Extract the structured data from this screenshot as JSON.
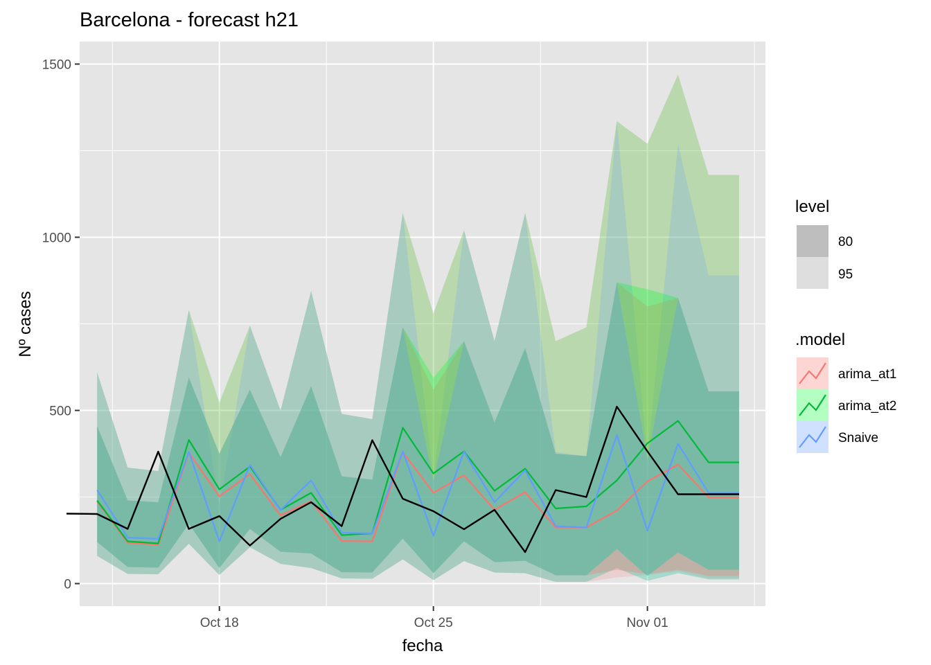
{
  "chart_data": {
    "type": "line",
    "title": "Barcelona - forecast h21",
    "xlabel": "fecha",
    "ylabel": "Nº cases",
    "x_start": "2021-10-14",
    "x": [
      "2021-10-14",
      "2021-10-15",
      "2021-10-16",
      "2021-10-17",
      "2021-10-18",
      "2021-10-19",
      "2021-10-20",
      "2021-10-21",
      "2021-10-22",
      "2021-10-23",
      "2021-10-24",
      "2021-10-25",
      "2021-10-26",
      "2021-10-27",
      "2021-10-28",
      "2021-10-29",
      "2021-10-30",
      "2021-10-31",
      "2021-11-01",
      "2021-11-02",
      "2021-11-03",
      "2021-11-04"
    ],
    "xlim": [
      "2021-10-13.43",
      "2021-11-04.86"
    ],
    "ylim": [
      -65,
      1565
    ],
    "y_ticks": [
      0,
      500,
      1000,
      1500
    ],
    "x_ticks": [
      {
        "label": "Oct 18",
        "date": "2021-10-18"
      },
      {
        "label": "Oct 25",
        "date": "2021-10-25"
      },
      {
        "label": "Nov 01",
        "date": "2021-11-01"
      }
    ],
    "grid": true,
    "legend_position": "right",
    "actual": {
      "name": "",
      "color": "#000000",
      "x": [
        "2021-10-13",
        "2021-10-14",
        "2021-10-15",
        "2021-10-16",
        "2021-10-17",
        "2021-10-18",
        "2021-10-19",
        "2021-10-20",
        "2021-10-21",
        "2021-10-22",
        "2021-10-23",
        "2021-10-24",
        "2021-10-25",
        "2021-10-26",
        "2021-10-27",
        "2021-10-28",
        "2021-10-29",
        "2021-10-30",
        "2021-10-31",
        "2021-11-01",
        "2021-11-02",
        "2021-11-03",
        "2021-11-04"
      ],
      "values": [
        202,
        201,
        158,
        381,
        158,
        195,
        110,
        187,
        235,
        166,
        414,
        245,
        209,
        157,
        213,
        91,
        270,
        250,
        511,
        382,
        258,
        258,
        258
      ]
    },
    "series": [
      {
        "name": "arima_at1",
        "color": "#F8766D",
        "band_color": "#F8766D",
        "values": [
          237,
          118,
          112,
          378,
          252,
          316,
          197,
          238,
          123,
          122,
          380,
          262,
          313,
          213,
          264,
          162,
          162,
          211,
          295,
          344,
          249,
          249
        ],
        "lower80": [
          120,
          48,
          46,
          173,
          45,
          158,
          92,
          87,
          33,
          32,
          130,
          30,
          122,
          62,
          66,
          24,
          24,
          40,
          27,
          40,
          22,
          22
        ],
        "upper80": [
          455,
          240,
          235,
          595,
          375,
          560,
          365,
          570,
          310,
          300,
          740,
          560,
          700,
          465,
          680,
          375,
          368,
          870,
          800,
          825,
          555,
          555
        ],
        "lower95": [
          80,
          28,
          27,
          115,
          25,
          105,
          57,
          45,
          15,
          14,
          70,
          10,
          65,
          32,
          30,
          5,
          5,
          18,
          25,
          35,
          15,
          15
        ],
        "upper95": [
          610,
          335,
          325,
          790,
          520,
          745,
          500,
          845,
          490,
          475,
          1070,
          780,
          1020,
          700,
          1070,
          700,
          740,
          1335,
          1270,
          1470,
          1180,
          1180
        ]
      },
      {
        "name": "arima_at2",
        "color": "#00BA38",
        "band_color": "#00FF33",
        "values": [
          240,
          122,
          116,
          415,
          272,
          338,
          213,
          262,
          140,
          145,
          450,
          318,
          382,
          268,
          332,
          217,
          223,
          298,
          405,
          470,
          350,
          350
        ],
        "lower80": [
          120,
          48,
          46,
          173,
          45,
          158,
          92,
          87,
          33,
          32,
          130,
          30,
          122,
          62,
          66,
          24,
          24,
          100,
          22,
          90,
          40,
          40
        ],
        "upper80": [
          455,
          240,
          235,
          595,
          375,
          560,
          365,
          570,
          310,
          300,
          740,
          595,
          700,
          465,
          680,
          375,
          368,
          870,
          850,
          825,
          555,
          555
        ],
        "lower95": [
          80,
          28,
          27,
          115,
          25,
          105,
          57,
          45,
          15,
          14,
          70,
          10,
          65,
          32,
          30,
          5,
          5,
          45,
          8,
          30,
          12,
          12
        ],
        "upper95": [
          610,
          335,
          325,
          790,
          525,
          745,
          500,
          845,
          490,
          475,
          1070,
          780,
          1020,
          700,
          1070,
          700,
          740,
          1335,
          1270,
          1470,
          1180,
          1180
        ]
      },
      {
        "name": "Snaive",
        "color": "#619CFF",
        "band_color": "#619CFF",
        "values": [
          270,
          133,
          129,
          381,
          122,
          343,
          212,
          298,
          147,
          145,
          381,
          138,
          381,
          235,
          327,
          166,
          162,
          429,
          153,
          404,
          262,
          262
        ],
        "lower80": [
          120,
          48,
          46,
          173,
          45,
          158,
          92,
          87,
          33,
          32,
          130,
          30,
          122,
          62,
          66,
          24,
          24,
          100,
          22,
          90,
          40,
          40
        ],
        "upper80": [
          455,
          240,
          235,
          595,
          375,
          560,
          365,
          570,
          310,
          300,
          740,
          295,
          700,
          465,
          680,
          375,
          368,
          870,
          360,
          825,
          555,
          555
        ],
        "lower95": [
          80,
          28,
          27,
          115,
          25,
          105,
          57,
          45,
          15,
          14,
          70,
          10,
          65,
          32,
          30,
          5,
          5,
          45,
          8,
          30,
          12,
          12
        ],
        "upper95": [
          610,
          335,
          325,
          790,
          225,
          745,
          500,
          845,
          490,
          475,
          1070,
          305,
          1020,
          700,
          1070,
          380,
          368,
          1335,
          360,
          1270,
          890,
          890
        ]
      }
    ],
    "legends": {
      "level": {
        "title": "level",
        "items": [
          {
            "label": "80",
            "color": "#BEBEBE"
          },
          {
            "label": "95",
            "color": "#DEDEDE"
          }
        ]
      },
      "model": {
        "title": ".model",
        "items": [
          "arima_at1",
          "arima_at2",
          "Snaive"
        ]
      }
    },
    "panel_background": "#E5E5E5",
    "grid_color": "#FFFFFF"
  }
}
